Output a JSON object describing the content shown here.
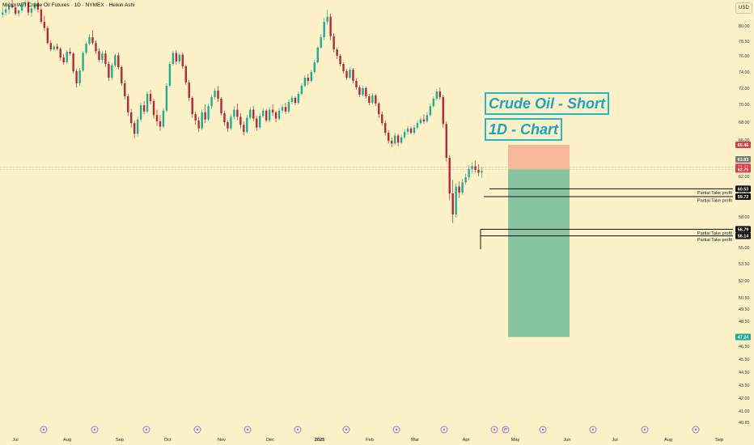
{
  "header": {
    "symbol_title": "Micro WTI Crude Oil Futures · 1D · NYMEX · Heikin Ashi",
    "currency_button": "USD"
  },
  "annotations": {
    "line1": "Crude Oil - Short",
    "line2": "1D - Chart"
  },
  "colors": {
    "background": "#fdf2c7",
    "bull_candle": "#22ab94",
    "bear_candle": "#b02a37",
    "stop_zone": "#f6b898",
    "target_zone": "#86c4a0",
    "annotation": "#1ea3c0"
  },
  "chart_data": {
    "type": "candlestick",
    "title": "Micro WTI Crude Oil Futures · 1D · NYMEX · Heikin Ashi",
    "y_axis": {
      "ticks": [
        80.0,
        78.5,
        76.0,
        74.0,
        72.0,
        70.0,
        68.0,
        66.0,
        64.0,
        62.0,
        60.0,
        58.0,
        55.0,
        53.5,
        52.0,
        50.5,
        49.5,
        48.5,
        46.5,
        45.5,
        44.5,
        43.5,
        42.0,
        41.0,
        40.85
      ],
      "tick_labels": [
        "80.00",
        "78.50",
        "76.00",
        "74.00",
        "72.00",
        "70.00",
        "68.00",
        "66.00",
        "64.00",
        "62.00",
        "60.00",
        "58.00",
        "55.00",
        "53.50",
        "52.00",
        "50.50",
        "49.50",
        "48.50",
        "46.50",
        "45.50",
        "44.50",
        "43.50",
        "42.00",
        "41.00",
        "40.85"
      ],
      "range": [
        40.5,
        82.5
      ]
    },
    "x_axis": {
      "labels": [
        "Jul",
        "Aug",
        "Sep",
        "Oct",
        "Nov",
        "Dec",
        "2025",
        "Feb",
        "Mar",
        "Apr",
        "May",
        "Jun",
        "Jul",
        "Aug",
        "Sep"
      ]
    },
    "price_badges": [
      {
        "label": "65.46",
        "color": "#d93c4a"
      },
      {
        "label": "63.83",
        "color": "#7a7a7a"
      },
      {
        "label": "63.02",
        "color": "#d93c4a"
      },
      {
        "label": "62.75",
        "color": "#d93c4a"
      },
      {
        "label": "60.53",
        "color": "#111111"
      },
      {
        "label": "59.72",
        "color": "#111111"
      },
      {
        "label": "56.79",
        "color": "#111111"
      },
      {
        "label": "56.14",
        "color": "#111111"
      },
      {
        "label": "47.24",
        "color": "#22ab94"
      }
    ],
    "take_profit_levels": [
      {
        "label": "Partial Take profit",
        "price": 60.53
      },
      {
        "label": "Partial Take profit",
        "price": 59.72
      },
      {
        "label": "Partial Take profit",
        "price": 56.79
      },
      {
        "label": "Partial Take profit",
        "price": 56.14
      }
    ],
    "short_position": {
      "entry": 62.75,
      "stop": 65.46,
      "target": 47.24
    },
    "candles": [
      [
        81.1,
        81.8,
        80.8,
        81.3
      ],
      [
        81.3,
        82.0,
        81.0,
        81.6
      ],
      [
        81.6,
        82.4,
        81.2,
        82.0
      ],
      [
        82.0,
        82.6,
        81.7,
        81.8
      ],
      [
        81.8,
        82.2,
        81.0,
        81.2
      ],
      [
        81.2,
        81.6,
        80.9,
        81.5
      ],
      [
        81.5,
        82.2,
        81.3,
        82.1
      ],
      [
        82.1,
        82.6,
        81.8,
        82.3
      ],
      [
        82.3,
        82.5,
        81.0,
        81.3
      ],
      [
        81.3,
        81.9,
        80.9,
        81.7
      ],
      [
        81.7,
        82.4,
        81.5,
        82.2
      ],
      [
        82.2,
        82.5,
        81.3,
        81.6
      ],
      [
        81.6,
        81.8,
        80.2,
        80.4
      ],
      [
        80.4,
        81.0,
        79.5,
        79.8
      ],
      [
        79.8,
        80.0,
        78.0,
        78.2
      ],
      [
        78.2,
        78.6,
        76.8,
        77.1
      ],
      [
        77.1,
        77.9,
        76.8,
        77.6
      ],
      [
        77.6,
        78.1,
        76.9,
        77.2
      ],
      [
        77.2,
        77.5,
        75.4,
        75.8
      ],
      [
        75.8,
        76.3,
        74.9,
        75.2
      ],
      [
        75.2,
        77.0,
        75.0,
        76.7
      ],
      [
        76.7,
        77.4,
        76.1,
        76.4
      ],
      [
        76.4,
        76.6,
        73.8,
        74.1
      ],
      [
        74.1,
        74.4,
        72.1,
        72.6
      ],
      [
        72.6,
        74.5,
        72.3,
        74.2
      ],
      [
        74.2,
        76.8,
        74.0,
        76.5
      ],
      [
        76.5,
        78.4,
        76.2,
        78.1
      ],
      [
        78.1,
        79.2,
        77.8,
        78.9
      ],
      [
        78.9,
        79.6,
        77.9,
        78.2
      ],
      [
        78.2,
        78.6,
        76.3,
        76.8
      ],
      [
        76.8,
        77.3,
        75.2,
        75.5
      ],
      [
        75.5,
        76.8,
        75.1,
        76.4
      ],
      [
        76.4,
        76.9,
        74.6,
        75.0
      ],
      [
        75.0,
        75.3,
        72.9,
        73.3
      ],
      [
        73.3,
        75.1,
        73.0,
        74.8
      ],
      [
        74.8,
        76.4,
        74.6,
        76.1
      ],
      [
        76.1,
        76.6,
        74.3,
        74.6
      ],
      [
        74.6,
        74.8,
        72.3,
        72.6
      ],
      [
        72.6,
        73.0,
        70.6,
        71.0
      ],
      [
        71.0,
        71.3,
        68.7,
        69.1
      ],
      [
        69.1,
        69.5,
        67.4,
        67.9
      ],
      [
        67.9,
        68.2,
        66.2,
        66.7
      ],
      [
        66.7,
        68.6,
        66.4,
        68.3
      ],
      [
        68.3,
        70.2,
        68.0,
        69.9
      ],
      [
        69.9,
        70.4,
        68.9,
        69.2
      ],
      [
        69.2,
        71.6,
        69.0,
        71.3
      ],
      [
        71.3,
        71.8,
        70.0,
        70.4
      ],
      [
        70.4,
        70.7,
        68.4,
        68.8
      ],
      [
        68.8,
        69.4,
        67.6,
        68.1
      ],
      [
        68.1,
        68.8,
        67.0,
        67.5
      ],
      [
        67.5,
        69.6,
        67.3,
        69.3
      ],
      [
        69.3,
        72.6,
        69.1,
        72.3
      ],
      [
        72.3,
        75.3,
        72.1,
        75.0
      ],
      [
        75.0,
        76.8,
        74.8,
        76.5
      ],
      [
        76.5,
        77.0,
        74.9,
        75.3
      ],
      [
        75.3,
        76.5,
        75.0,
        76.2
      ],
      [
        76.2,
        76.6,
        74.4,
        74.7
      ],
      [
        74.7,
        74.9,
        72.4,
        72.7
      ],
      [
        72.7,
        73.0,
        70.4,
        70.8
      ],
      [
        70.8,
        71.0,
        68.5,
        68.9
      ],
      [
        68.9,
        69.2,
        67.7,
        68.2
      ],
      [
        68.2,
        68.6,
        66.9,
        67.3
      ],
      [
        67.3,
        69.4,
        67.1,
        69.1
      ],
      [
        69.1,
        70.0,
        67.9,
        68.3
      ],
      [
        68.3,
        70.1,
        68.1,
        69.8
      ],
      [
        69.8,
        71.2,
        69.5,
        70.9
      ],
      [
        70.9,
        72.0,
        70.6,
        71.7
      ],
      [
        71.7,
        72.3,
        70.3,
        70.7
      ],
      [
        70.7,
        70.9,
        68.7,
        69.0
      ],
      [
        69.0,
        69.3,
        67.6,
        68.0
      ],
      [
        68.0,
        68.2,
        66.9,
        67.3
      ],
      [
        67.3,
        68.9,
        67.1,
        68.6
      ],
      [
        68.6,
        69.8,
        68.3,
        69.4
      ],
      [
        69.4,
        70.1,
        68.2,
        68.6
      ],
      [
        68.6,
        69.0,
        67.3,
        67.7
      ],
      [
        67.7,
        68.1,
        66.5,
        66.9
      ],
      [
        66.9,
        68.8,
        66.7,
        68.5
      ],
      [
        68.5,
        69.7,
        68.3,
        69.4
      ],
      [
        69.4,
        69.8,
        68.1,
        68.4
      ],
      [
        68.4,
        68.7,
        67.0,
        67.4
      ],
      [
        67.4,
        69.0,
        67.2,
        68.7
      ],
      [
        68.7,
        69.6,
        68.5,
        69.3
      ],
      [
        69.3,
        69.5,
        68.0,
        68.2
      ],
      [
        68.2,
        69.7,
        68.0,
        69.4
      ],
      [
        69.4,
        70.0,
        68.7,
        69.1
      ],
      [
        69.1,
        69.3,
        68.0,
        68.4
      ],
      [
        68.4,
        69.6,
        68.2,
        69.3
      ],
      [
        69.3,
        70.0,
        69.0,
        69.7
      ],
      [
        69.7,
        70.2,
        68.9,
        69.2
      ],
      [
        69.2,
        70.6,
        69.0,
        70.3
      ],
      [
        70.3,
        71.1,
        70.0,
        70.8
      ],
      [
        70.8,
        71.0,
        69.9,
        70.2
      ],
      [
        70.2,
        71.6,
        70.0,
        71.3
      ],
      [
        71.3,
        72.6,
        71.1,
        72.3
      ],
      [
        72.3,
        73.6,
        72.1,
        73.3
      ],
      [
        73.3,
        73.8,
        72.4,
        72.9
      ],
      [
        72.9,
        74.3,
        72.7,
        74.0
      ],
      [
        74.0,
        75.5,
        73.8,
        75.2
      ],
      [
        75.2,
        77.7,
        75.0,
        77.4
      ],
      [
        77.4,
        79.2,
        77.2,
        78.9
      ],
      [
        78.9,
        80.8,
        78.6,
        80.4
      ],
      [
        80.4,
        81.6,
        80.1,
        80.9
      ],
      [
        80.9,
        81.2,
        78.6,
        79.0
      ],
      [
        79.0,
        79.3,
        76.6,
        77.1
      ],
      [
        77.1,
        77.4,
        75.6,
        76.0
      ],
      [
        76.0,
        76.3,
        74.7,
        75.0
      ],
      [
        75.0,
        75.2,
        73.8,
        74.1
      ],
      [
        74.1,
        74.4,
        73.0,
        73.3
      ],
      [
        73.3,
        74.6,
        73.1,
        74.3
      ],
      [
        74.3,
        74.5,
        72.6,
        72.9
      ],
      [
        72.9,
        73.2,
        71.8,
        72.1
      ],
      [
        72.1,
        72.4,
        70.9,
        71.2
      ],
      [
        71.2,
        72.3,
        71.0,
        72.0
      ],
      [
        72.0,
        72.2,
        70.7,
        71.0
      ],
      [
        71.0,
        71.3,
        69.9,
        70.2
      ],
      [
        70.2,
        71.4,
        70.0,
        71.1
      ],
      [
        71.1,
        71.3,
        69.8,
        70.1
      ],
      [
        70.1,
        70.3,
        68.5,
        68.9
      ],
      [
        68.9,
        69.2,
        67.6,
        67.9
      ],
      [
        67.9,
        68.2,
        66.5,
        66.8
      ],
      [
        66.8,
        67.1,
        65.6,
        65.9
      ],
      [
        65.9,
        66.3,
        65.2,
        65.6
      ],
      [
        65.6,
        66.8,
        65.4,
        66.5
      ],
      [
        66.5,
        66.7,
        65.3,
        65.7
      ],
      [
        65.7,
        66.6,
        65.5,
        66.3
      ],
      [
        66.3,
        67.2,
        66.1,
        66.9
      ],
      [
        66.9,
        67.6,
        66.6,
        67.3
      ],
      [
        67.3,
        67.5,
        66.6,
        66.8
      ],
      [
        66.8,
        67.7,
        66.6,
        67.4
      ],
      [
        67.4,
        68.2,
        67.2,
        67.9
      ],
      [
        67.9,
        68.6,
        67.7,
        68.3
      ],
      [
        68.3,
        68.9,
        67.8,
        68.1
      ],
      [
        68.1,
        69.1,
        67.9,
        68.8
      ],
      [
        68.8,
        70.1,
        68.6,
        69.8
      ],
      [
        69.8,
        71.0,
        69.6,
        70.7
      ],
      [
        70.7,
        71.9,
        70.5,
        71.6
      ],
      [
        71.6,
        72.1,
        70.6,
        70.9
      ],
      [
        70.9,
        71.2,
        67.4,
        67.8
      ],
      [
        67.8,
        68.1,
        63.6,
        64.0
      ],
      [
        64.0,
        64.3,
        59.4,
        60.0
      ],
      [
        60.0,
        61.6,
        57.4,
        58.2
      ],
      [
        58.2,
        61.2,
        57.9,
        60.8
      ],
      [
        60.8,
        61.4,
        59.6,
        60.1
      ],
      [
        60.1,
        61.7,
        59.9,
        61.3
      ],
      [
        61.3,
        62.3,
        61.0,
        61.9
      ],
      [
        61.9,
        63.2,
        61.6,
        62.8
      ],
      [
        62.8,
        63.5,
        62.3,
        63.1
      ],
      [
        63.1,
        63.7,
        62.4,
        62.7
      ],
      [
        62.7,
        63.3,
        62.0,
        62.4
      ],
      [
        62.4,
        63.0,
        61.8,
        62.6
      ]
    ]
  },
  "x_icons": [
    "calendar-event-icon",
    "flag-icon"
  ]
}
